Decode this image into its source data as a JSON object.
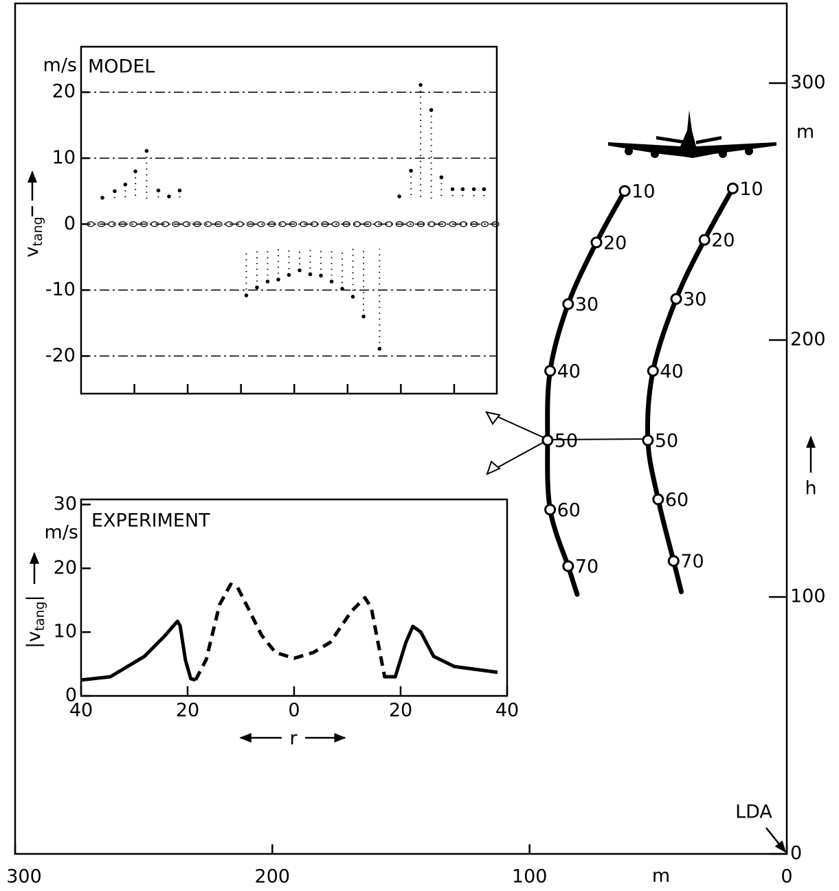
{
  "chart_data": [
    {
      "type": "trajectory",
      "xlabel": "m",
      "ylabel": "h",
      "yunit": "m",
      "annotation": "LDA",
      "xlim": [
        300,
        0
      ],
      "ylim": [
        0,
        331
      ],
      "xticks": [
        300,
        200,
        100,
        0
      ],
      "yticks": [
        0,
        100,
        200,
        300
      ],
      "series": [
        {
          "labels": [
            "10",
            "20",
            "30",
            "40",
            "50",
            "60",
            "70"
          ],
          "x": [
            63,
            74,
            85,
            92,
            93,
            92,
            85
          ],
          "y": [
            258,
            238,
            214,
            188,
            161,
            134,
            112
          ]
        },
        {
          "labels": [
            "10",
            "20",
            "30",
            "40",
            "50",
            "60",
            "70"
          ],
          "x": [
            21,
            32,
            43,
            52,
            54,
            50,
            44
          ],
          "y": [
            259,
            239,
            216,
            188,
            161,
            138,
            114
          ]
        }
      ]
    },
    {
      "type": "scatter",
      "title": "MODEL",
      "yunit": "m/s",
      "ylabel": {
        "main": "v",
        "sub": "tang"
      },
      "xlim": [
        -40,
        38
      ],
      "ylim": [
        -25.7,
        26.9
      ],
      "xticks": [
        -30,
        -20,
        -10,
        0,
        10,
        20,
        30
      ],
      "yticks": [
        20,
        10,
        0,
        -10,
        -20
      ],
      "grid": true,
      "x": [
        -36,
        -33.7,
        -31.7,
        -29.8,
        -27.7,
        -25.5,
        -23.5,
        -21.5,
        19.7,
        21.9,
        23.7,
        25.7,
        27.6,
        29.7,
        31.6,
        33.7,
        35.6,
        -9,
        -7,
        -5,
        -3,
        -1,
        1,
        3,
        5,
        7,
        9,
        11,
        13,
        16
      ],
      "y": [
        4,
        5,
        6,
        8,
        11.1,
        5.1,
        4.2,
        5.1,
        4.2,
        8.1,
        21.1,
        17.3,
        7.1,
        5.3,
        5.3,
        5.3,
        5.3,
        -10.8,
        -9.6,
        -8.7,
        -8.4,
        -7.7,
        -7,
        -7.6,
        -7.8,
        -8.7,
        -9.8,
        -11,
        -14,
        -18.9
      ]
    },
    {
      "type": "line",
      "title": "EXPERIMENT",
      "yunit": "m/s",
      "xlabel": "r",
      "ylabel": {
        "pre": "|v",
        "sub": "tang",
        "post": "|"
      },
      "xlim": [
        -40,
        40
      ],
      "ylim": [
        0,
        30.8
      ],
      "xticks": [
        {
          "value": -40,
          "label": "40"
        },
        {
          "value": -20,
          "label": "20"
        },
        0,
        20,
        40
      ],
      "yticks": [
        0,
        10,
        20,
        30
      ],
      "series": [
        {
          "style": "solid",
          "x": [
            -39.9,
            -34.5,
            -28.1,
            -24.3,
            -21.9,
            -21.4,
            -20.4,
            -19.4,
            -18.5
          ],
          "y": [
            2.5,
            3.0,
            6.2,
            9.4,
            11.7,
            11.0,
            5.6,
            2.7,
            2.5
          ]
        },
        {
          "style": "dashed",
          "x": [
            -18.5,
            -16.5,
            -14.0,
            -11.9,
            -10.6,
            -8.6,
            -6.1,
            -3.5,
            0,
            3.6,
            6.8,
            10.7,
            13.3,
            14.5,
            17.0,
            17.7
          ],
          "y": [
            2.5,
            5.7,
            14.3,
            17.5,
            17.0,
            13.7,
            9.5,
            6.8,
            5.9,
            6.8,
            8.4,
            13.2,
            15.4,
            13.8,
            3.0,
            3.0
          ]
        },
        {
          "style": "solid",
          "x": [
            17.7,
            19.0,
            21.0,
            22.3,
            23.8,
            26.2,
            30.1,
            38.2
          ],
          "y": [
            3.0,
            3.0,
            8.4,
            10.9,
            10.0,
            6.2,
            4.6,
            3.7
          ]
        }
      ]
    }
  ]
}
